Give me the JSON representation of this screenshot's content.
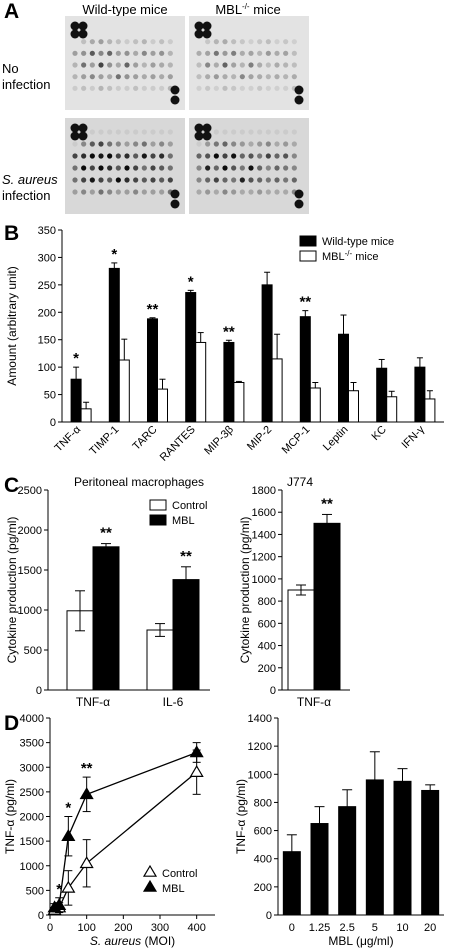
{
  "panelA": {
    "letter": "A",
    "col_labels": [
      "Wild-type mice",
      "MBL-/- mice"
    ],
    "row_labels": [
      "No infection",
      "S. aureus infection"
    ]
  },
  "panelB": {
    "letter": "B",
    "chart_data": {
      "type": "bar",
      "ylabel": "Amount (arbitrary unit)",
      "ylim": [
        0,
        350
      ],
      "yticks": [
        0,
        50,
        100,
        150,
        200,
        250,
        300,
        350
      ],
      "categories": [
        "TNF-α",
        "TIMP-1",
        "TARC",
        "RANTES",
        "MIP-3β",
        "MIP-2",
        "MCP-1",
        "Leptin",
        "KC",
        "IFN-γ"
      ],
      "series": [
        {
          "name": "Wild-type mice",
          "values": [
            78,
            280,
            188,
            236,
            145,
            250,
            192,
            160,
            98,
            100
          ],
          "errors": [
            22,
            10,
            2,
            4,
            4,
            23,
            11,
            35,
            16,
            17
          ],
          "color": "#000000"
        },
        {
          "name": "MBL-/- mice",
          "values": [
            24,
            113,
            60,
            145,
            72,
            115,
            62,
            57,
            46,
            42
          ],
          "errors": [
            12,
            38,
            18,
            18,
            2,
            45,
            10,
            15,
            10,
            15
          ],
          "color": "#ffffff"
        }
      ],
      "significance": [
        "*",
        "*",
        "**",
        "*",
        "**",
        "",
        "**",
        "",
        "",
        ""
      ],
      "legend": "top-right"
    }
  },
  "panelC": {
    "letter": "C",
    "chart_data": [
      {
        "type": "bar",
        "title": "Peritoneal macrophages",
        "ylabel": "Cytokine production (pg/ml)",
        "ylim": [
          0,
          2500
        ],
        "yticks": [
          0,
          500,
          1000,
          1500,
          2000,
          2500
        ],
        "categories": [
          "TNF-α",
          "IL-6"
        ],
        "series": [
          {
            "name": "Control",
            "values": [
              990,
              750
            ],
            "errors": [
              250,
              80
            ],
            "color": "#ffffff"
          },
          {
            "name": "MBL",
            "values": [
              1790,
              1380
            ],
            "errors": [
              40,
              160
            ],
            "color": "#000000"
          }
        ],
        "significance": [
          "**",
          "**"
        ],
        "legend": "top-right"
      },
      {
        "type": "bar",
        "title": "J774",
        "ylabel": "Cytokine production (pg/ml)",
        "ylim": [
          0,
          1800
        ],
        "yticks": [
          0,
          200,
          400,
          600,
          800,
          1000,
          1200,
          1400,
          1600,
          1800
        ],
        "categories": [
          "TNF-α"
        ],
        "series": [
          {
            "name": "Control",
            "values": [
              900
            ],
            "errors": [
              45
            ],
            "color": "#ffffff"
          },
          {
            "name": "MBL",
            "values": [
              1500
            ],
            "errors": [
              80
            ],
            "color": "#000000"
          }
        ],
        "significance": [
          "**"
        ]
      }
    ]
  },
  "panelD": {
    "letter": "D",
    "chart_data": [
      {
        "type": "line",
        "xlabel": "S. aureus (MOI)",
        "ylabel": "TNF-α (pg/ml)",
        "xlim": [
          0,
          450
        ],
        "ylim": [
          0,
          4000
        ],
        "xticks": [
          0,
          100,
          200,
          300,
          400
        ],
        "yticks": [
          0,
          500,
          1000,
          1500,
          2000,
          2500,
          3000,
          3500,
          4000
        ],
        "x": [
          12.5,
          25,
          50,
          100,
          400
        ],
        "series": [
          {
            "name": "Control",
            "values": [
              100,
              150,
              550,
              1050,
              2900
            ],
            "errors": [
              50,
              100,
              350,
              480,
              450
            ],
            "marker": "open-triangle"
          },
          {
            "name": "MBL",
            "values": [
              150,
              200,
              1600,
              2450,
              3300
            ],
            "errors": [
              80,
              150,
              400,
              350,
              200
            ],
            "marker": "filled-triangle"
          }
        ],
        "significance": [
          "",
          "*",
          "*",
          "**",
          ""
        ],
        "legend": "bottom-right"
      },
      {
        "type": "bar",
        "xlabel": "MBL (μg/ml)",
        "ylabel": "TNF-α (pg/ml)",
        "ylim": [
          0,
          1400
        ],
        "yticks": [
          0,
          200,
          400,
          600,
          800,
          1000,
          1200,
          1400
        ],
        "categories": [
          "0",
          "1.25",
          "2.5",
          "5",
          "10",
          "20"
        ],
        "values": [
          450,
          650,
          770,
          960,
          950,
          885
        ],
        "errors": [
          120,
          120,
          120,
          200,
          90,
          40
        ],
        "color": "#000000"
      }
    ]
  }
}
